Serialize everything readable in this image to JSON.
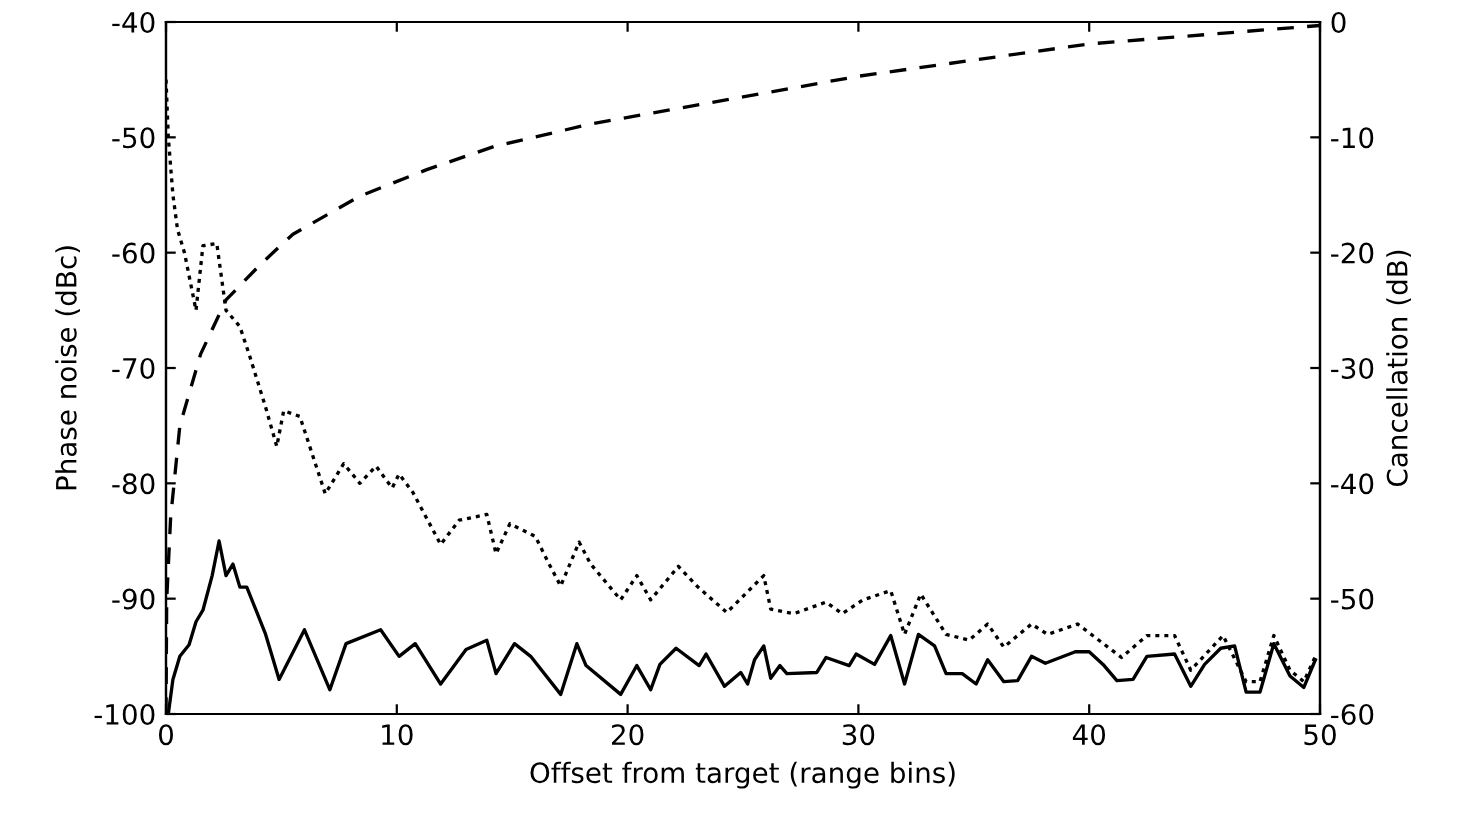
{
  "chart_data": {
    "type": "line",
    "xlabel": "Offset from target (range bins)",
    "ylabel": "Phase noise (dBc)",
    "y2label": "Cancellation (dB)",
    "xlim": [
      0,
      50
    ],
    "xticks": [
      0,
      10,
      20,
      30,
      40,
      50
    ],
    "ylim": [
      -100,
      -40
    ],
    "yticks": [
      -100,
      -90,
      -80,
      -70,
      -60,
      -50,
      -40
    ],
    "y2lim": [
      -60,
      0
    ],
    "y2ticks": [
      -60,
      -50,
      -40,
      -30,
      -20,
      -10,
      0
    ],
    "grid": false,
    "legend": false,
    "series": [
      {
        "color": "#000000",
        "line_style": "solid",
        "x": [
          0.1,
          0.3,
          0.6,
          1.0,
          1.3,
          1.6,
          2.0,
          2.3,
          2.6,
          2.9,
          3.2,
          3.5,
          3.9,
          4.3,
          4.6,
          4.9,
          6.0,
          7.1,
          7.8,
          9.3,
          10.1,
          10.8,
          11.9,
          13.0,
          13.9,
          14.3,
          15.1,
          15.8,
          17.1,
          17.8,
          18.2,
          19.7,
          20.4,
          21.0,
          21.4,
          22.1,
          23.1,
          23.4,
          24.2,
          24.9,
          25.2,
          25.5,
          25.9,
          26.2,
          26.6,
          26.9,
          28.2,
          28.6,
          29.6,
          29.9,
          30.7,
          31.4,
          32.0,
          32.6,
          33.3,
          33.8,
          34.5,
          35.1,
          35.6,
          36.3,
          36.9,
          37.5,
          38.1,
          39.4,
          40.0,
          40.6,
          41.2,
          41.9,
          42.5,
          43.7,
          44.4,
          45.0,
          45.7,
          46.3,
          46.8,
          47.4,
          48.0,
          48.7,
          49.3,
          49.8
        ],
        "values": [
          -100,
          -97,
          -95,
          -94,
          -92,
          -91,
          -88,
          -85,
          -88,
          -87,
          -89,
          -89,
          -91,
          -93,
          -95,
          -97,
          -92.7,
          -97.9,
          -93.9,
          -92.7,
          -95,
          -93.9,
          -97.4,
          -94.4,
          -93.6,
          -96.5,
          -93.9,
          -95,
          -98.3,
          -93.9,
          -95.8,
          -98.3,
          -95.8,
          -97.9,
          -95.7,
          -94.3,
          -95.8,
          -94.8,
          -97.6,
          -96.4,
          -97.4,
          -95.3,
          -94.1,
          -96.9,
          -95.8,
          -96.5,
          -96.4,
          -95.1,
          -95.8,
          -94.8,
          -95.7,
          -93.2,
          -97.4,
          -93.1,
          -94.1,
          -96.5,
          -96.5,
          -97.4,
          -95.3,
          -97.2,
          -97.1,
          -95,
          -95.6,
          -94.6,
          -94.6,
          -95.7,
          -97.1,
          -97,
          -95,
          -94.8,
          -97.6,
          -95.7,
          -94.3,
          -94.1,
          -98.1,
          -98.1,
          -93.9,
          -96.7,
          -97.7,
          -95.3
        ]
      },
      {
        "color": "#000000",
        "line_style": "dotted",
        "x": [
          0,
          0.1,
          0.3,
          0.5,
          0.8,
          1.3,
          1.6,
          2.2,
          2.6,
          3.2,
          3.6,
          4.3,
          4.8,
          5.1,
          5.8,
          6.9,
          7.7,
          8.4,
          9.1,
          9.8,
          10.1,
          10.7,
          11.9,
          12.7,
          13.9,
          14.3,
          14.9,
          16.0,
          16.6,
          17.1,
          17.9,
          18.4,
          19.7,
          20.4,
          21.0,
          22.2,
          23.0,
          24.3,
          25.9,
          26.2,
          27.2,
          28.6,
          29.3,
          30.2,
          31.4,
          32.0,
          32.7,
          33.8,
          34.8,
          35.6,
          36.3,
          37.5,
          38.2,
          39.5,
          41.4,
          42.5,
          43.7,
          44.4,
          45.8,
          46.8,
          47.4,
          48.0,
          48.7,
          49.3,
          49.8
        ],
        "values": [
          -45,
          -50,
          -55,
          -58,
          -60,
          -65,
          -59.4,
          -59.2,
          -65,
          -66.4,
          -68.8,
          -73.3,
          -76.8,
          -73.7,
          -74.2,
          -80.9,
          -78.3,
          -80,
          -78.5,
          -80.4,
          -79.2,
          -80.8,
          -85.3,
          -83.2,
          -82.7,
          -86.1,
          -83.5,
          -84.6,
          -87,
          -88.9,
          -85.1,
          -87,
          -90.1,
          -88,
          -90.1,
          -87.2,
          -88.9,
          -91.2,
          -88,
          -90.9,
          -91.3,
          -90.3,
          -91.3,
          -90.1,
          -89.3,
          -93.1,
          -89.6,
          -93.1,
          -93.6,
          -92.2,
          -94.2,
          -92.2,
          -93.1,
          -92.2,
          -95.1,
          -93.2,
          -93.2,
          -96.2,
          -93.2,
          -97.2,
          -97.2,
          -93.2,
          -96.2,
          -97.2,
          -95
        ]
      },
      {
        "color": "#000000",
        "line_style": "dashed",
        "axis": "y2",
        "x": [
          0,
          0.03,
          0.2,
          0.6,
          1.5,
          2.6,
          4.1,
          5.5,
          8.4,
          11.3,
          14.2,
          18.5,
          25,
          30,
          40,
          50
        ],
        "values": [
          -60,
          -50.1,
          -43,
          -35,
          -28.8,
          -24.1,
          -21,
          -18.4,
          -15.1,
          -12.8,
          -10.8,
          -8.8,
          -6.5,
          -4.7,
          -1.9,
          -0.3
        ]
      }
    ]
  }
}
